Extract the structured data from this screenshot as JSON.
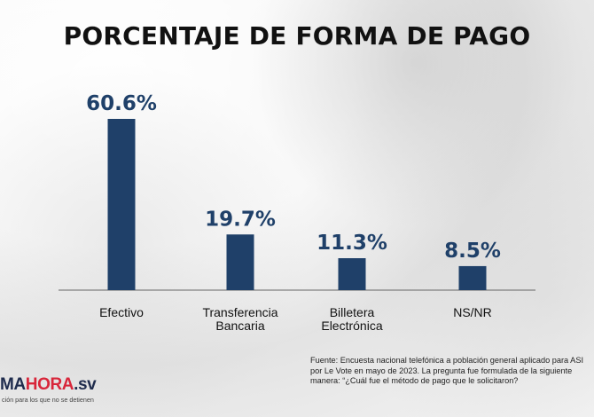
{
  "chart_data": {
    "type": "bar",
    "title": "PORCENTAJE DE FORMA DE PAGO",
    "categories": [
      "Efectivo",
      "Transferencia\nBancaria",
      "Billetera\nElectrónica",
      "NS/NR"
    ],
    "values": [
      60.6,
      19.7,
      11.3,
      8.5
    ],
    "data_labels": [
      "60.6%",
      "19.7%",
      "11.3%",
      "8.5%"
    ],
    "xlabel": "",
    "ylabel": "",
    "ylim": [
      0,
      60.6
    ],
    "grid": false,
    "legend": "none",
    "bar_color": "#1f4069",
    "axis_color": "#666666"
  },
  "source_text": "Fuente: Encuesta nacional telefónica a población general aplicado para ASI por Le Vote en mayo de 2023. La pregunta fue formulada de la siguiente manera: “¿Cuál fue el método de pago que le solicitaron?",
  "logo": {
    "brand_part_1": "MA",
    "brand_part_2": "HORA",
    "brand_part_3": ".sv",
    "tagline": "ción para los que no se detienen"
  }
}
